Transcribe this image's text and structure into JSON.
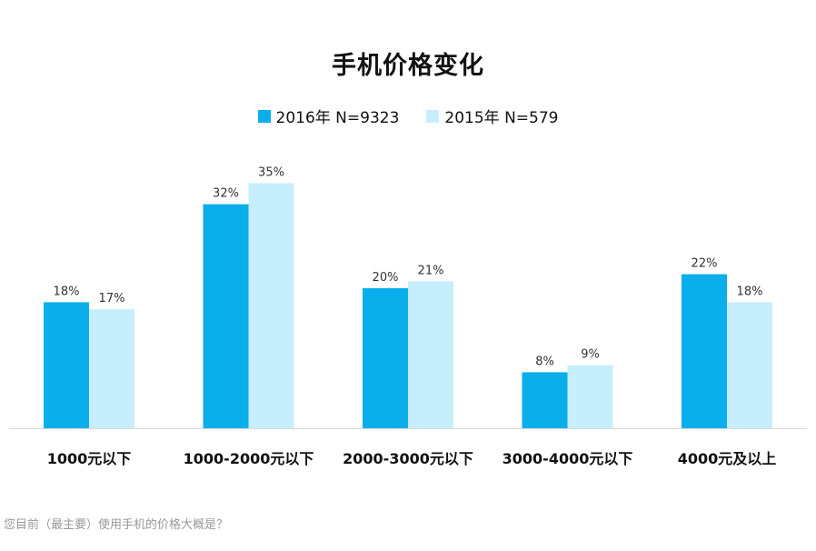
{
  "chart_data": {
    "type": "bar",
    "title": "手机价格变化",
    "categories": [
      "1000元以下",
      "1000-2000元以下",
      "2000-3000元以下",
      "3000-4000元以下",
      "4000元及以上"
    ],
    "series": [
      {
        "name": "2016年 N=9323",
        "values": [
          18,
          32,
          20,
          8,
          22
        ],
        "labels": [
          "18%",
          "32%",
          "20%",
          "8%",
          "22%"
        ],
        "color": "#0aaeea"
      },
      {
        "name": "2015年 N=579",
        "values": [
          17,
          35,
          21,
          9,
          18
        ],
        "labels": [
          "17%",
          "35%",
          "21%",
          "9%",
          "18%"
        ],
        "color": "#c7eefc"
      }
    ],
    "ylim": [
      0,
      35
    ],
    "grid": false,
    "legend_position": "top-center"
  },
  "footnote": "您目前（最主要）使用手机的价格大概是？"
}
